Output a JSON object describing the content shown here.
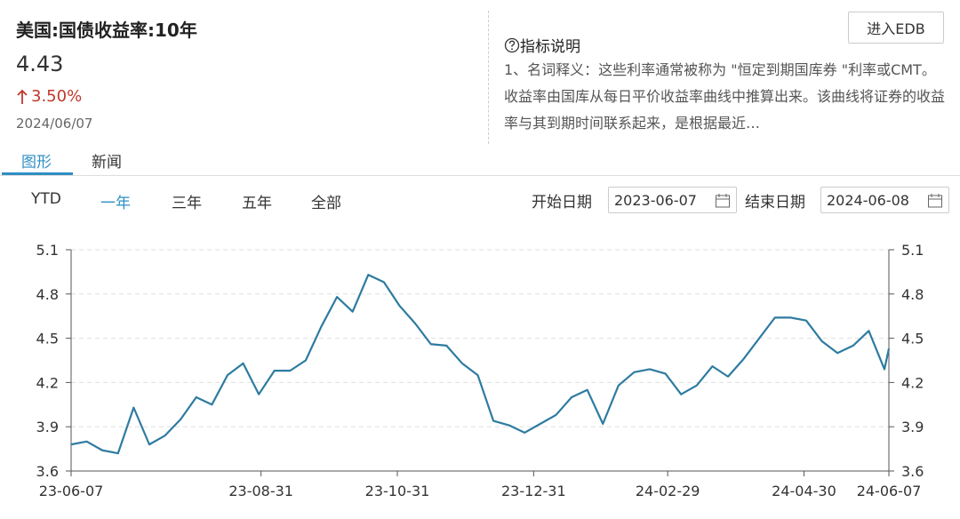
{
  "header": {
    "title": "美国:国债收益率:10年",
    "value": 4.43,
    "change": "3.50%",
    "date": "2024/06/07",
    "button": "进入EDB"
  },
  "info": {
    "title": "指标说明",
    "text": "1、名词释义：这些利率通常被称为 \"恒定到期国库券 \"利率或CMT。收益率由国库从每日平价收益率曲线中推算出来。该曲线将证券的收益率与其到期时间联系起来，是根据最近…"
  },
  "tabs": [
    "图形",
    "新闻"
  ],
  "ranges": [
    "YTD",
    "一年",
    "三年",
    "五年",
    "全部"
  ],
  "date_range": {
    "start_label": "开始日期",
    "start": "2023-06-07",
    "end_label": "结束日期",
    "end": "2024-06-08"
  },
  "chart_data": {
    "type": "line",
    "color": "#2e7ba0",
    "grid": true,
    "x": [
      "23-06-07",
      "23-06-14",
      "23-06-21",
      "23-06-28",
      "23-07-05",
      "23-07-12",
      "23-07-19",
      "23-07-26",
      "23-08-02",
      "23-08-09",
      "23-08-16",
      "23-08-23",
      "23-08-30",
      "23-09-06",
      "23-09-13",
      "23-09-20",
      "23-09-27",
      "23-10-04",
      "23-10-11",
      "23-10-18",
      "23-10-25",
      "23-11-01",
      "23-11-08",
      "23-11-15",
      "23-11-22",
      "23-11-29",
      "23-12-06",
      "23-12-13",
      "23-12-20",
      "23-12-27",
      "24-01-03",
      "24-01-10",
      "24-01-17",
      "24-01-24",
      "24-01-31",
      "24-02-07",
      "24-02-14",
      "24-02-21",
      "24-02-28",
      "24-03-06",
      "24-03-13",
      "24-03-20",
      "24-03-27",
      "24-04-03",
      "24-04-10",
      "24-04-17",
      "24-04-24",
      "24-05-01",
      "24-05-08",
      "24-05-15",
      "24-05-22",
      "24-05-29",
      "24-06-05",
      "24-06-07"
    ],
    "values": [
      3.78,
      3.8,
      3.74,
      3.72,
      4.03,
      3.78,
      3.84,
      3.95,
      4.1,
      4.05,
      4.25,
      4.33,
      4.12,
      4.28,
      4.28,
      4.35,
      4.58,
      4.78,
      4.68,
      4.93,
      4.88,
      4.72,
      4.6,
      4.46,
      4.45,
      4.33,
      4.25,
      3.94,
      3.91,
      3.86,
      3.92,
      3.98,
      4.1,
      4.15,
      3.92,
      4.18,
      4.27,
      4.29,
      4.26,
      4.12,
      4.18,
      4.31,
      4.24,
      4.36,
      4.5,
      4.64,
      4.64,
      4.62,
      4.48,
      4.4,
      4.45,
      4.55,
      4.29,
      4.43
    ],
    "xlim": [
      "23-06-07",
      "24-06-07"
    ],
    "xticks": [
      "23-06-07",
      "23-08-31",
      "23-10-31",
      "23-12-31",
      "24-02-29",
      "24-04-30",
      "24-06-07"
    ],
    "ylim": [
      3.6,
      5.1
    ],
    "yticks": [
      3.6,
      3.9,
      4.2,
      4.5,
      4.8,
      5.1
    ]
  }
}
